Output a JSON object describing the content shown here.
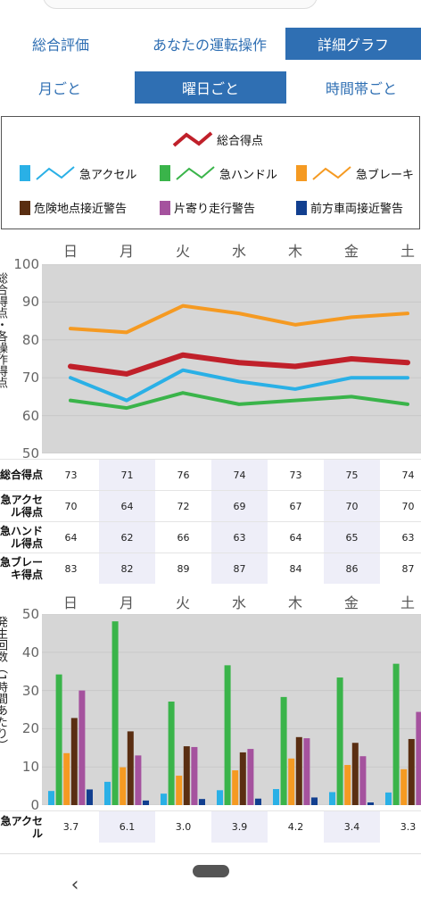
{
  "tabs_row1": [
    {
      "label": "総合評価",
      "active": false
    },
    {
      "label": "あなたの運転操作",
      "active": false
    },
    {
      "label": "詳細グラフ",
      "active": true
    }
  ],
  "tabs_row2": [
    {
      "label": "月ごと",
      "active": false
    },
    {
      "label": "曜日ごと",
      "active": true
    },
    {
      "label": "時間帯ごと",
      "active": false
    }
  ],
  "legend": {
    "total": {
      "label": "総合得点",
      "color": "#c0202a"
    },
    "accel": {
      "label": "急アクセル",
      "color": "#2ab0e6"
    },
    "handle": {
      "label": "急ハンドル",
      "color": "#3ab44a"
    },
    "brake": {
      "label": "急ブレーキ",
      "color": "#f59a22"
    },
    "danger": {
      "label": "危険地点接近警告",
      "color": "#5a2e12"
    },
    "lane": {
      "label": "片寄り走行警告",
      "color": "#a5529e"
    },
    "front": {
      "label": "前方車両接近警告",
      "color": "#123f8f"
    }
  },
  "days": [
    "日",
    "月",
    "火",
    "水",
    "木",
    "金",
    "土"
  ],
  "chart_data": [
    {
      "type": "line",
      "categories": [
        "日",
        "月",
        "火",
        "水",
        "木",
        "金",
        "土"
      ],
      "ylim": [
        50,
        100
      ],
      "yticks": [
        50,
        60,
        70,
        80,
        90,
        100
      ],
      "ylabel": "総合得点・各操作得点",
      "series": [
        {
          "name": "総合得点",
          "color": "#c0202a",
          "values": [
            73,
            71,
            76,
            74,
            73,
            75,
            74
          ]
        },
        {
          "name": "急アクセル",
          "color": "#2ab0e6",
          "values": [
            70,
            64,
            72,
            69,
            67,
            70,
            70
          ]
        },
        {
          "name": "急ハンドル",
          "color": "#3ab44a",
          "values": [
            64,
            62,
            66,
            63,
            64,
            65,
            63
          ]
        },
        {
          "name": "急ブレーキ",
          "color": "#f59a22",
          "values": [
            83,
            82,
            89,
            87,
            84,
            86,
            87
          ]
        }
      ]
    },
    {
      "type": "bar",
      "categories": [
        "日",
        "月",
        "火",
        "水",
        "木",
        "金",
        "土"
      ],
      "ylim": [
        0,
        50
      ],
      "yticks": [
        0,
        10,
        20,
        30,
        40,
        50
      ],
      "ylabel": "発生回数（1時間あたり）",
      "series": [
        {
          "name": "急アクセル",
          "color": "#2ab0e6",
          "values": [
            3.7,
            6.1,
            3.0,
            3.9,
            4.2,
            3.4,
            3.3
          ]
        },
        {
          "name": "急ハンドル",
          "color": "#3ab44a",
          "values": [
            34.2,
            48.1,
            27.1,
            36.6,
            28.3,
            33.4,
            37.0
          ]
        },
        {
          "name": "急ブレーキ",
          "color": "#f59a22",
          "values": [
            13.6,
            9.9,
            7.7,
            9.1,
            12.2,
            10.5,
            9.4
          ]
        },
        {
          "name": "危険地点接近警告",
          "color": "#5a2e12",
          "values": [
            22.8,
            19.3,
            15.4,
            13.8,
            17.8,
            16.3,
            17.3
          ]
        },
        {
          "name": "片寄り走行警告",
          "color": "#a5529e",
          "values": [
            30.0,
            13.0,
            15.2,
            14.7,
            17.5,
            12.8,
            24.4
          ]
        },
        {
          "name": "前方車両接近警告",
          "color": "#123f8f",
          "values": [
            4.1,
            1.2,
            1.6,
            1.7,
            2.0,
            0.7,
            3.2
          ]
        }
      ]
    }
  ],
  "table1": [
    {
      "label": "総合得点",
      "values": [
        "73",
        "71",
        "76",
        "74",
        "73",
        "75",
        "74"
      ]
    },
    {
      "label": "急アクセル得点",
      "values": [
        "70",
        "64",
        "72",
        "69",
        "67",
        "70",
        "70"
      ]
    },
    {
      "label": "急ハンドル得点",
      "values": [
        "64",
        "62",
        "66",
        "63",
        "64",
        "65",
        "63"
      ]
    },
    {
      "label": "急ブレーキ得点",
      "values": [
        "83",
        "82",
        "89",
        "87",
        "84",
        "86",
        "87"
      ]
    }
  ],
  "table2": [
    {
      "label": "急アクセル",
      "values": [
        "3.7",
        "6.1",
        "3.0",
        "3.9",
        "4.2",
        "3.4",
        "3.3"
      ]
    }
  ]
}
